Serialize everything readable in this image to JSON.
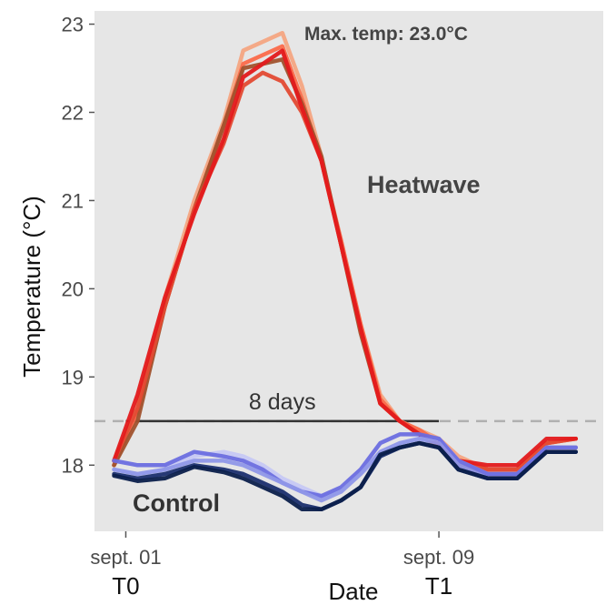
{
  "chart_data": {
    "type": "line",
    "title": "",
    "xlabel": "Date",
    "ylabel": "Temperature (°C)",
    "x_ticks": [
      "sept. 01",
      "sept. 09"
    ],
    "x_tick_days": [
      1,
      9
    ],
    "x_tick_sublabels": [
      "T0",
      "T1"
    ],
    "xlim": [
      0.2,
      13.2
    ],
    "ylim": [
      17.25,
      23.15
    ],
    "y_ticks": [
      18,
      19,
      20,
      21,
      22,
      23
    ],
    "grid": false,
    "legend": "none",
    "background": "#e6e6e6",
    "reference_line": {
      "y": 18.5,
      "color": "#b0b0b0",
      "style": "dashed"
    },
    "duration_segment": {
      "x_start": 1,
      "x_end": 9,
      "y": 18.5,
      "label": "8 days"
    },
    "annotations": {
      "max_temp": "Max. temp: 23.0°C",
      "heatwave": "Heatwave",
      "control": "Control"
    },
    "series_groups": [
      {
        "name": "Heatwave",
        "x": [
          0.7,
          1.3,
          2.0,
          2.75,
          3.5,
          4.0,
          4.5,
          5.0,
          5.5,
          6.0,
          6.5,
          7.0,
          7.5,
          8.0,
          8.5,
          9.0,
          9.5,
          10.25,
          11.0,
          11.75,
          12.5
        ],
        "series": [
          {
            "color": "#f4a582",
            "values": [
              18.0,
              18.7,
              19.9,
              21.0,
              21.9,
              22.7,
              22.8,
              22.9,
              22.3,
              21.5,
              20.5,
              19.6,
              18.8,
              18.5,
              18.4,
              18.3,
              18.1,
              17.95,
              17.95,
              18.25,
              18.3
            ]
          },
          {
            "color": "#fb6a4a",
            "values": [
              18.0,
              18.6,
              19.8,
              20.9,
              21.85,
              22.55,
              22.65,
              22.75,
              22.15,
              21.45,
              20.55,
              19.6,
              18.75,
              18.5,
              18.4,
              18.25,
              18.05,
              17.95,
              17.95,
              18.25,
              18.3
            ]
          },
          {
            "color": "#a0522d",
            "values": [
              18.0,
              18.5,
              19.8,
              20.9,
              21.85,
              22.5,
              22.55,
              22.6,
              22.1,
              21.5,
              20.5,
              19.5,
              18.7,
              18.5,
              18.35,
              18.2,
              18.0,
              17.9,
              17.9,
              18.2,
              18.2
            ]
          },
          {
            "color": "#e34a33",
            "values": [
              18.05,
              18.65,
              19.8,
              20.9,
              21.65,
              22.3,
              22.45,
              22.35,
              22.0,
              21.45,
              20.5,
              19.55,
              18.7,
              18.5,
              18.35,
              18.25,
              18.05,
              17.95,
              17.95,
              18.25,
              18.3
            ]
          },
          {
            "color": "#e31a1c",
            "values": [
              18.05,
              18.8,
              19.9,
              20.85,
              21.7,
              22.4,
              22.55,
              22.7,
              22.05,
              21.45,
              20.5,
              19.55,
              18.7,
              18.5,
              18.35,
              18.25,
              18.05,
              18.0,
              18.0,
              18.3,
              18.3
            ]
          }
        ]
      },
      {
        "name": "Control",
        "x": [
          0.7,
          1.3,
          2.0,
          2.75,
          3.5,
          4.0,
          4.5,
          5.0,
          5.5,
          6.0,
          6.5,
          7.0,
          7.5,
          8.0,
          8.5,
          9.0,
          9.5,
          10.25,
          11.0,
          11.75,
          12.5
        ],
        "series": [
          {
            "color": "#c6c8f4",
            "values": [
              17.95,
              17.9,
              17.95,
              18.1,
              18.15,
              18.1,
              18.0,
              17.85,
              17.75,
              17.65,
              17.7,
              17.9,
              18.1,
              18.25,
              18.3,
              18.3,
              18.05,
              17.9,
              17.9,
              18.2,
              18.2
            ]
          },
          {
            "color": "#6b6ee0",
            "values": [
              18.05,
              18.0,
              18.0,
              18.15,
              18.1,
              18.05,
              17.95,
              17.8,
              17.7,
              17.65,
              17.75,
              17.95,
              18.25,
              18.35,
              18.35,
              18.3,
              18.05,
              17.9,
              17.9,
              18.2,
              18.2
            ]
          },
          {
            "color": "#8f97e8",
            "values": [
              17.95,
              17.9,
              17.95,
              18.05,
              18.05,
              18.0,
              17.9,
              17.8,
              17.7,
              17.6,
              17.7,
              17.9,
              18.15,
              18.25,
              18.3,
              18.25,
              18.0,
              17.85,
              17.85,
              18.15,
              18.15
            ]
          },
          {
            "color": "#1b2f6e",
            "values": [
              17.9,
              17.85,
              17.9,
              18.0,
              17.95,
              17.9,
              17.8,
              17.7,
              17.55,
              17.5,
              17.6,
              17.75,
              18.1,
              18.2,
              18.25,
              18.2,
              17.95,
              17.85,
              17.85,
              18.15,
              18.15
            ]
          },
          {
            "color": "#0b1f4b",
            "values": [
              17.88,
              17.82,
              17.85,
              17.98,
              17.92,
              17.85,
              17.75,
              17.65,
              17.5,
              17.5,
              17.6,
              17.75,
              18.12,
              18.2,
              18.25,
              18.2,
              17.95,
              17.85,
              17.85,
              18.15,
              18.15
            ]
          }
        ]
      }
    ]
  }
}
